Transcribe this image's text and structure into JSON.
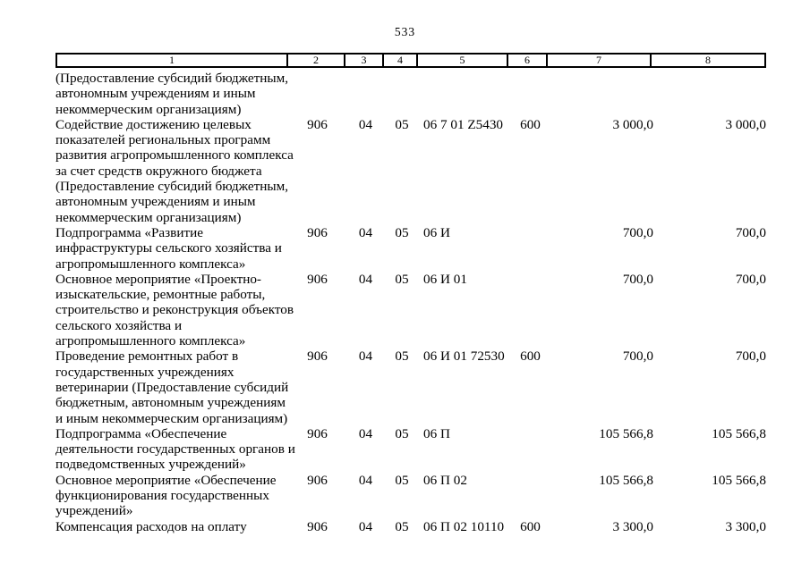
{
  "page": {
    "number": "533"
  },
  "table": {
    "headers": [
      "1",
      "2",
      "3",
      "4",
      "5",
      "6",
      "7",
      "8"
    ],
    "rows": [
      {
        "name": "(Предоставление субсидий бюджетным,\nавтономным учреждениям и иным\nнекоммерческим организациям)",
        "grbs": "",
        "rz": "",
        "pr": "",
        "csr": "",
        "vr": "",
        "amount1": "",
        "amount2": ""
      },
      {
        "name": "Содействие достижению целевых\nпоказателей региональных программ\nразвития агропромышленного комплекса\nза счет средств окружного бюджета\n(Предоставление субсидий бюджетным,\nавтономным учреждениям и иным\nнекоммерческим организациям)",
        "grbs": "906",
        "rz": "04",
        "pr": "05",
        "csr": "06 7 01 Z5430",
        "vr": "600",
        "amount1": "3 000,0",
        "amount2": "3 000,0"
      },
      {
        "name": "Подпрограмма «Развитие\nинфраструктуры сельского хозяйства и\nагропромышленного комплекса»",
        "grbs": "906",
        "rz": "04",
        "pr": "05",
        "csr": "06 И",
        "vr": "",
        "amount1": "700,0",
        "amount2": "700,0"
      },
      {
        "name": "Основное мероприятие «Проектно-\nизыскательские, ремонтные работы,\nстроительство и реконструкция объектов\nсельского хозяйства и\nагропромышленного комплекса»",
        "grbs": "906",
        "rz": "04",
        "pr": "05",
        "csr": "06 И 01",
        "vr": "",
        "amount1": "700,0",
        "amount2": "700,0"
      },
      {
        "name": "Проведение ремонтных работ в\nгосударственных учреждениях\nветеринарии (Предоставление субсидий\nбюджетным, автономным учреждениям\nи иным некоммерческим организациям)",
        "grbs": "906",
        "rz": "04",
        "pr": "05",
        "csr": "06 И 01 72530",
        "vr": "600",
        "amount1": "700,0",
        "amount2": "700,0"
      },
      {
        "name": "Подпрограмма «Обеспечение\nдеятельности государственных органов и\nподведомственных учреждений»",
        "grbs": "906",
        "rz": "04",
        "pr": "05",
        "csr": "06 П",
        "vr": "",
        "amount1": "105 566,8",
        "amount2": "105 566,8"
      },
      {
        "name": "Основное мероприятие «Обеспечение\nфункционирования государственных\nучреждений»",
        "grbs": "906",
        "rz": "04",
        "pr": "05",
        "csr": "06 П 02",
        "vr": "",
        "amount1": "105 566,8",
        "amount2": "105 566,8"
      },
      {
        "name": "Компенсация расходов на оплату",
        "grbs": "906",
        "rz": "04",
        "pr": "05",
        "csr": "06 П 02 10110",
        "vr": "600",
        "amount1": "3 300,0",
        "amount2": "3 300,0"
      }
    ]
  }
}
